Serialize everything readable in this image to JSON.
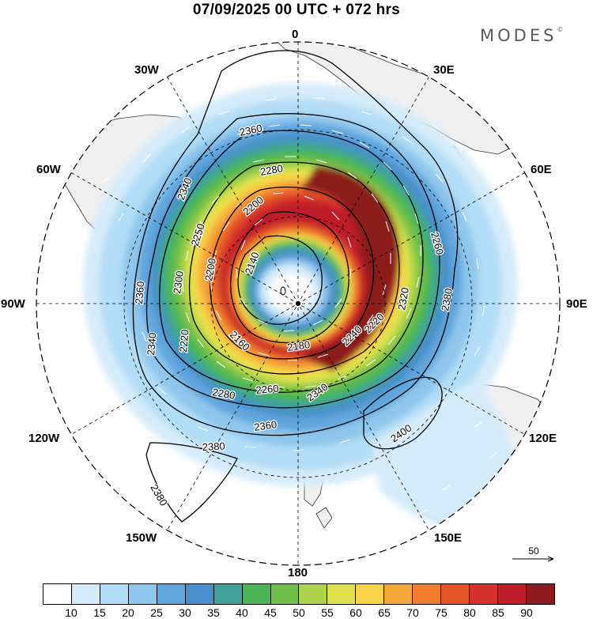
{
  "header": {
    "title": "07/09/2025  00 UTC  + 072 hrs",
    "brand": "MODES",
    "brand_mark": "©"
  },
  "longitude_labels": {
    "n0": "0",
    "n30e": "30E",
    "n60e": "60E",
    "n90e": "90E",
    "n120e": "120E",
    "n150e": "150E",
    "n180": "180",
    "n150w": "150W",
    "n120w": "120W",
    "n90w": "90W",
    "n60w": "60W",
    "n30w": "30W"
  },
  "contour_labels": {
    "c2360_top": "2360",
    "c2340_left": "2340",
    "c2280": "2280",
    "c2200_top": "2200",
    "c2260_right": "2260",
    "c2380_right": "2380",
    "c2320": "2320",
    "c2240": "2240",
    "c2220": "2220",
    "c2140": "2140",
    "c2200_left": "2200",
    "c2160": "2160",
    "c2180": "2180",
    "c2300": "2300",
    "c2250": "2250",
    "c2360_left": "2360",
    "c2340_lower": "2340",
    "c2220_left": "2220",
    "c2280_bottom": "2280",
    "c2260_bottom": "2260",
    "c2340_bottom": "2340",
    "c2360_bottom": "2360",
    "c2380_bottom": "2380",
    "c2400": "2400",
    "c2380_lower": "2380"
  },
  "wind_speed_scale": {
    "colors": [
      "#ffffff",
      "#d5ecfa",
      "#b2ddf6",
      "#8ec6ec",
      "#61a6dd",
      "#4a8fcb",
      "#3fa39c",
      "#49b556",
      "#72c04a",
      "#acd34a",
      "#dfe34e",
      "#f7d447",
      "#f5a83a",
      "#f07d2e",
      "#e45427",
      "#d6302c",
      "#bf1f2b",
      "#8c1a1e"
    ],
    "labels": [
      "10",
      "15",
      "20",
      "25",
      "30",
      "35",
      "40",
      "45",
      "50",
      "55",
      "60",
      "65",
      "70",
      "75",
      "80",
      "85",
      "90"
    ]
  },
  "reference_vector": {
    "label": "50"
  }
}
